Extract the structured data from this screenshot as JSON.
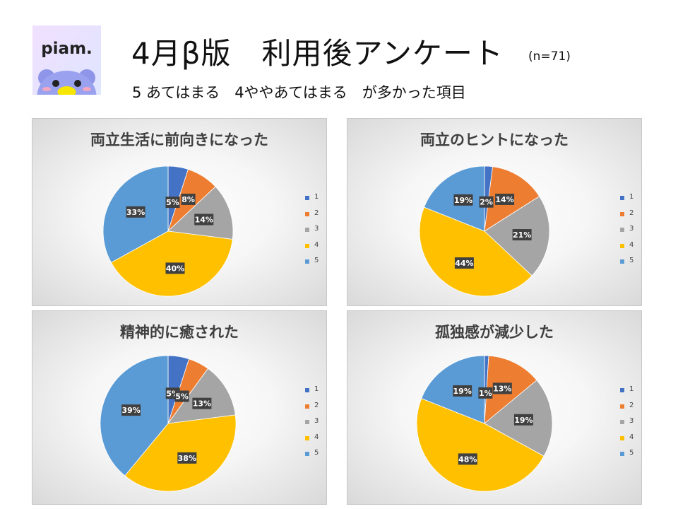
{
  "header": {
    "logo_text": "piam.",
    "title": "4月β版　利用後アンケート",
    "n_label": "(n=71)",
    "subtitle": "5 あてはまる　4ややあてはまる　が多かった項目"
  },
  "colors": {
    "1": "#4472c4",
    "2": "#ed7d31",
    "3": "#a5a5a5",
    "4": "#ffc000",
    "5": "#5b9bd5"
  },
  "chart_data": [
    {
      "type": "pie",
      "title": "両立生活に前向きになった",
      "categories": [
        "1",
        "2",
        "3",
        "4",
        "5"
      ],
      "values": [
        5,
        8,
        14,
        40,
        33
      ],
      "data_labels": [
        "5%",
        "8%",
        "14%",
        "40%",
        "33%"
      ],
      "legend": "right"
    },
    {
      "type": "pie",
      "title": "両立のヒントになった",
      "categories": [
        "1",
        "2",
        "3",
        "4",
        "5"
      ],
      "values": [
        2,
        14,
        21,
        44,
        19
      ],
      "data_labels": [
        "2%",
        "14%",
        "21%",
        "44%",
        "19%"
      ],
      "legend": "right"
    },
    {
      "type": "pie",
      "title": "精神的に癒された",
      "categories": [
        "1",
        "2",
        "3",
        "4",
        "5"
      ],
      "values": [
        5,
        5,
        13,
        38,
        39
      ],
      "data_labels": [
        "5%",
        "5%",
        "13%",
        "38%",
        "39%"
      ],
      "legend": "right"
    },
    {
      "type": "pie",
      "title": "孤独感が減少した",
      "categories": [
        "1",
        "2",
        "3",
        "4",
        "5"
      ],
      "values": [
        1,
        13,
        19,
        48,
        19
      ],
      "data_labels": [
        "1%",
        "13%",
        "19%",
        "48%",
        "19%"
      ],
      "legend": "right"
    }
  ]
}
